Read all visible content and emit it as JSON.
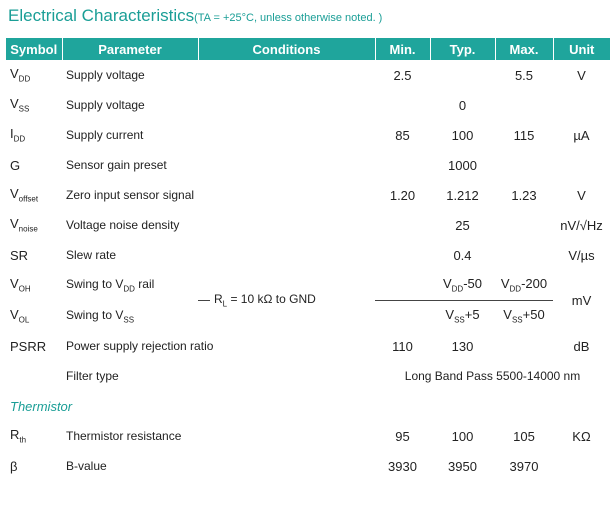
{
  "title": "Electrical Characteristics",
  "title_note": "(TA = +25°C, unless otherwise noted. )",
  "table": {
    "header": [
      "Symbol",
      "Parameter",
      "Conditions",
      "Min.",
      "Typ.",
      "Max.",
      "Unit"
    ],
    "rows": [
      {
        "symbol": [
          "V",
          "DD"
        ],
        "parameter": "Supply voltage",
        "min": "2.5",
        "max": "5.5",
        "unit": "V"
      },
      {
        "symbol": [
          "V",
          "SS"
        ],
        "parameter": "Supply voltage",
        "typ": "0"
      },
      {
        "symbol": [
          "I",
          "DD"
        ],
        "parameter": "Supply current",
        "min": "85",
        "typ": "100",
        "max": "115",
        "unit": "µA"
      },
      {
        "symbol": "G",
        "parameter": "Sensor gain preset",
        "typ": "1000"
      },
      {
        "symbol": [
          "V",
          "offset"
        ],
        "parameter": "Zero input sensor signal",
        "min": "1.20",
        "typ": "1.212",
        "max": "1.23",
        "unit": "V"
      },
      {
        "symbol": [
          "V",
          "noise"
        ],
        "parameter": "Voltage noise density",
        "typ": "25",
        "unit": "nV/√Hz"
      },
      {
        "symbol": "SR",
        "parameter": "Slew rate",
        "typ": "0.4",
        "unit": "V/µs"
      },
      {
        "group": {
          "condition": [
            "R",
            "L",
            " = 10 kΩ to GND"
          ],
          "unit": "mV",
          "rows": [
            {
              "symbol": [
                "V",
                "OH"
              ],
              "parameter": [
                "Swing to V",
                "DD",
                " rail"
              ],
              "typ": [
                "V",
                "DD",
                "-50"
              ],
              "max": [
                "V",
                "DD",
                "-200"
              ]
            },
            {
              "symbol": [
                "V",
                "OL"
              ],
              "parameter": [
                "Swing to V",
                "SS"
              ],
              "typ": [
                "V",
                "SS",
                "+5"
              ],
              "max": [
                "V",
                "SS",
                "+50"
              ]
            }
          ]
        }
      },
      {
        "symbol": "PSRR",
        "parameter": "Power supply rejection ratio",
        "min": "110",
        "typ": "130",
        "unit": "dB"
      },
      {
        "parameter": "Filter type",
        "spec": "Long Band Pass 5500-14000 nm"
      }
    ],
    "section": "Thermistor",
    "section_rows": [
      {
        "symbol": [
          "R",
          "th"
        ],
        "parameter": "Thermistor resistance",
        "min": "95",
        "typ": "100",
        "max": "105",
        "unit": "KΩ"
      },
      {
        "symbol": "β",
        "parameter": "B-value",
        "min": "3930",
        "typ": "3950",
        "max": "3970"
      }
    ]
  }
}
